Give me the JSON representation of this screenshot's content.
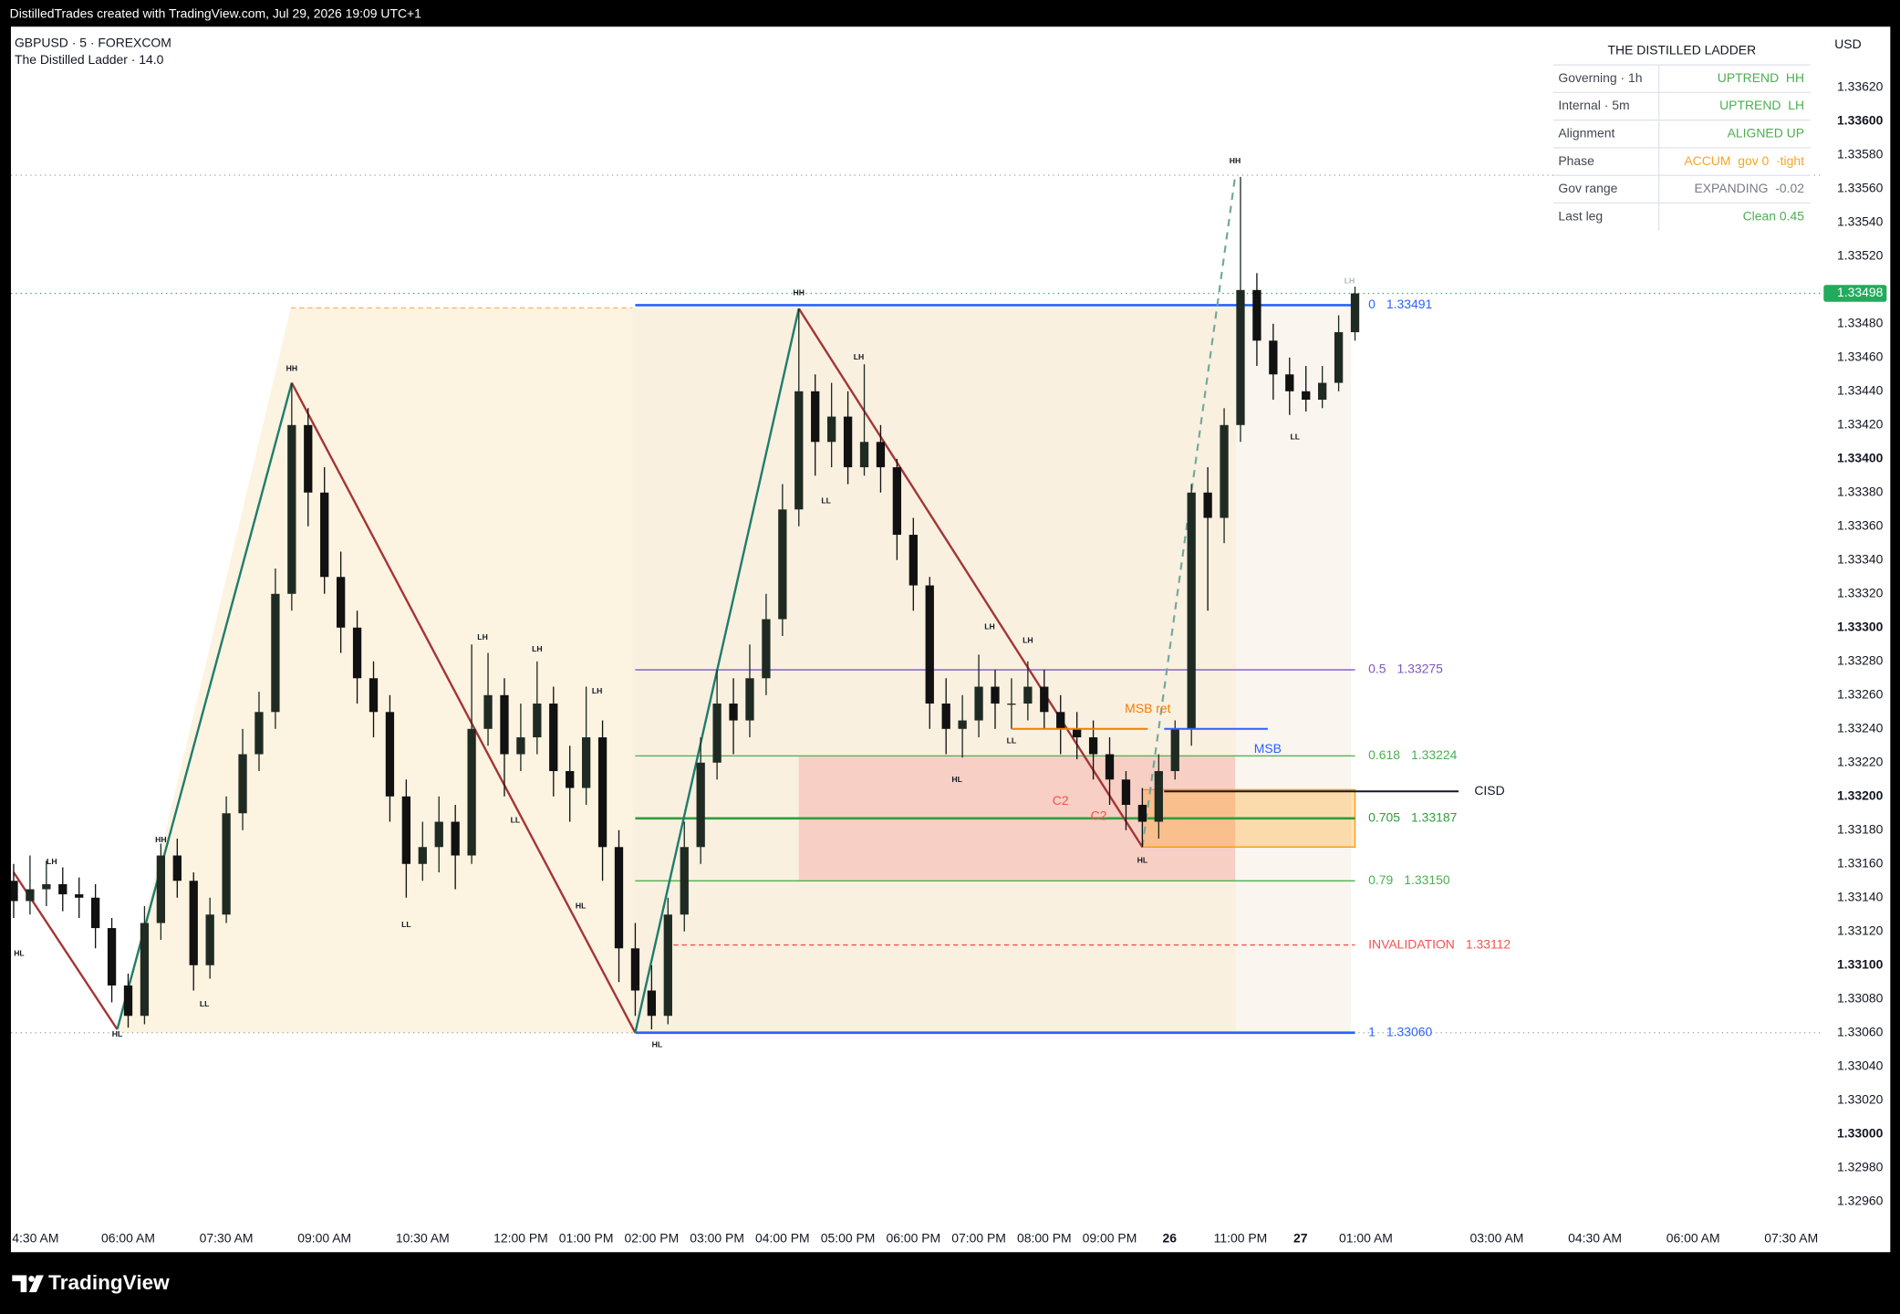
{
  "header": {
    "attribution": "DistilledTrades created with TradingView.com, Jul 29, 2026 19:09 UTC+1"
  },
  "footer": {
    "brand": "TradingView"
  },
  "table": {
    "title": "THE DISTILLED LADDER",
    "rows": [
      [
        "Governing · 1h",
        "UPTREND  HH"
      ],
      [
        "Internal · 5m",
        "UPTREND  LH"
      ],
      [
        "Alignment",
        "ALIGNED UP"
      ],
      [
        "Phase",
        "ACCUM  gov 0  ·tight"
      ],
      [
        "Gov range",
        "EXPANDING  -0.02"
      ],
      [
        "Last leg",
        "Clean 0.45"
      ]
    ],
    "value_colors": [
      "#4caf50",
      "#4caf50",
      "#4caf50",
      "#f5a623",
      "#787b86",
      "#4caf50"
    ]
  },
  "chart_data": {
    "type": "candlestick",
    "title": "GBPUSD · 5 · FOREXCOM",
    "subtitle": "The Distilled Ladder · 14.0",
    "currency": "USD",
    "up_color": "#1f2b22",
    "down_color": "#111111",
    "x": [
      -21,
      -18,
      -15,
      -12,
      -9,
      -6,
      -3,
      0,
      3,
      6,
      9,
      12,
      15,
      18,
      21,
      24,
      27,
      30,
      33,
      36,
      39,
      42,
      45,
      48,
      51,
      54,
      57,
      60,
      63,
      66,
      69,
      72,
      75,
      78,
      81,
      84,
      87,
      90,
      93,
      96,
      99,
      102,
      105,
      108,
      111,
      114,
      117,
      120,
      123,
      126,
      129,
      132,
      135,
      138,
      141,
      144,
      147,
      150,
      153,
      156,
      159,
      162,
      165,
      168,
      171,
      174,
      177,
      180,
      183,
      186,
      189,
      192,
      195,
      198,
      201,
      204,
      207,
      210,
      213,
      216,
      219,
      222,
      225
    ],
    "open": [
      1.3315,
      1.33138,
      1.33145,
      1.33148,
      1.33142,
      1.3314,
      1.33122,
      1.33088,
      1.3307,
      1.33125,
      1.33165,
      1.3315,
      1.331,
      1.3313,
      1.3319,
      1.33225,
      1.3325,
      1.3332,
      1.3342,
      1.3338,
      1.3333,
      1.333,
      1.3327,
      1.3325,
      1.332,
      1.3316,
      1.3317,
      1.33185,
      1.33165,
      1.3324,
      1.3326,
      1.33225,
      1.33235,
      1.33255,
      1.33215,
      1.33205,
      1.33235,
      1.3317,
      1.3311,
      1.33085,
      1.3307,
      1.3313,
      1.3317,
      1.3322,
      1.33255,
      1.33245,
      1.3327,
      1.33305,
      1.3337,
      1.3344,
      1.3341,
      1.33425,
      1.33395,
      1.3341,
      1.33395,
      1.33355,
      1.33325,
      1.33255,
      1.3324,
      1.33245,
      1.33265,
      1.33255,
      1.33255,
      1.33265,
      1.3325,
      1.3324,
      1.33235,
      1.33225,
      1.3321,
      1.33195,
      1.33185,
      1.33215,
      1.3324,
      1.3338,
      1.33365,
      1.3342,
      1.335,
      1.3347,
      1.3345,
      1.3344,
      1.33435,
      1.33445,
      1.33475
    ],
    "high": [
      1.3316,
      1.33165,
      1.33162,
      1.33158,
      1.33152,
      1.33148,
      1.33128,
      1.33095,
      1.33135,
      1.33172,
      1.33175,
      1.33155,
      1.3314,
      1.332,
      1.3324,
      1.33262,
      1.33335,
      1.33445,
      1.3343,
      1.33395,
      1.33345,
      1.3331,
      1.3328,
      1.3326,
      1.3321,
      1.33185,
      1.332,
      1.33195,
      1.3329,
      1.33285,
      1.3327,
      1.33255,
      1.3328,
      1.33265,
      1.3323,
      1.33265,
      1.33245,
      1.3318,
      1.33125,
      1.331,
      1.3314,
      1.33185,
      1.33235,
      1.33275,
      1.3327,
      1.3329,
      1.3332,
      1.33385,
      1.33489,
      1.3345,
      1.33445,
      1.3344,
      1.33456,
      1.3342,
      1.334,
      1.33365,
      1.3333,
      1.3327,
      1.3326,
      1.33284,
      1.33275,
      1.3327,
      1.3328,
      1.33275,
      1.3326,
      1.3325,
      1.33245,
      1.33235,
      1.33215,
      1.33205,
      1.33225,
      1.33245,
      1.33385,
      1.33395,
      1.3343,
      1.33567,
      1.3351,
      1.3348,
      1.3346,
      1.33455,
      1.33455,
      1.33485,
      1.33502
    ],
    "low": [
      1.33128,
      1.3313,
      1.33135,
      1.33132,
      1.33128,
      1.3311,
      1.33078,
      1.33063,
      1.33065,
      1.33115,
      1.3314,
      1.33085,
      1.33092,
      1.33125,
      1.3318,
      1.33215,
      1.3324,
      1.3331,
      1.3336,
      1.3332,
      1.33285,
      1.33255,
      1.33235,
      1.33185,
      1.3314,
      1.3315,
      1.33155,
      1.33145,
      1.3316,
      1.3323,
      1.332,
      1.33215,
      1.33225,
      1.332,
      1.33185,
      1.33195,
      1.3315,
      1.3309,
      1.3307,
      1.33062,
      1.33065,
      1.3312,
      1.3316,
      1.3321,
      1.33225,
      1.33235,
      1.3326,
      1.33295,
      1.3336,
      1.3339,
      1.33395,
      1.33385,
      1.3339,
      1.3338,
      1.3334,
      1.3331,
      1.3324,
      1.33225,
      1.33223,
      1.33235,
      1.3324,
      1.3324,
      1.33245,
      1.3324,
      1.33225,
      1.33222,
      1.3321,
      1.33195,
      1.3318,
      1.3317,
      1.33175,
      1.3321,
      1.3323,
      1.3331,
      1.3335,
      1.3341,
      1.33455,
      1.33435,
      1.33426,
      1.33428,
      1.3343,
      1.3344,
      1.3347
    ],
    "close": [
      1.33138,
      1.33145,
      1.33148,
      1.33142,
      1.3314,
      1.33122,
      1.33088,
      1.3307,
      1.33125,
      1.33165,
      1.3315,
      1.331,
      1.3313,
      1.3319,
      1.33225,
      1.3325,
      1.3332,
      1.3342,
      1.3338,
      1.3333,
      1.333,
      1.3327,
      1.3325,
      1.332,
      1.3316,
      1.3317,
      1.33185,
      1.33165,
      1.3324,
      1.3326,
      1.33225,
      1.33235,
      1.33255,
      1.33215,
      1.33205,
      1.33235,
      1.3317,
      1.3311,
      1.33085,
      1.3307,
      1.3313,
      1.3317,
      1.3322,
      1.33255,
      1.33245,
      1.3327,
      1.33305,
      1.3337,
      1.3344,
      1.3341,
      1.33425,
      1.33395,
      1.3341,
      1.33395,
      1.33355,
      1.33325,
      1.33255,
      1.3324,
      1.33245,
      1.33265,
      1.33255,
      1.33255,
      1.33265,
      1.3325,
      1.3324,
      1.33235,
      1.33225,
      1.3321,
      1.33195,
      1.33185,
      1.33215,
      1.3324,
      1.3338,
      1.33365,
      1.3342,
      1.335,
      1.3347,
      1.3345,
      1.3344,
      1.33435,
      1.33445,
      1.33475,
      1.33498
    ],
    "xlim": [
      -21.5,
      310.5
    ],
    "xticks": [
      {
        "value": -17,
        "label": "4:30 AM"
      },
      {
        "value": 0,
        "label": "06:00 AM"
      },
      {
        "value": 18,
        "label": "07:30 AM"
      },
      {
        "value": 36,
        "label": "09:00 AM"
      },
      {
        "value": 54,
        "label": "10:30 AM"
      },
      {
        "value": 72,
        "label": "12:00 PM"
      },
      {
        "value": 84,
        "label": "01:00 PM"
      },
      {
        "value": 96,
        "label": "02:00 PM"
      },
      {
        "value": 108,
        "label": "03:00 PM"
      },
      {
        "value": 120,
        "label": "04:00 PM"
      },
      {
        "value": 132,
        "label": "05:00 PM"
      },
      {
        "value": 144,
        "label": "06:00 PM"
      },
      {
        "value": 156,
        "label": "07:00 PM"
      },
      {
        "value": 168,
        "label": "08:00 PM"
      },
      {
        "value": 180,
        "label": "09:00 PM"
      },
      {
        "value": 191,
        "label": "26",
        "bold": true
      },
      {
        "value": 204,
        "label": "11:00 PM"
      },
      {
        "value": 215,
        "label": "27",
        "bold": true
      },
      {
        "value": 227,
        "label": "01:00 AM"
      },
      {
        "value": 251,
        "label": "03:00 AM"
      },
      {
        "value": 269,
        "label": "04:30 AM"
      },
      {
        "value": 287,
        "label": "06:00 AM"
      },
      {
        "value": 305,
        "label": "07:30 AM"
      }
    ],
    "ylim": [
      1.3293,
      1.33656
    ],
    "yticks": [
      {
        "value": 1.3296,
        "label": "1.32960"
      },
      {
        "value": 1.3298,
        "label": "1.32980"
      },
      {
        "value": 1.33,
        "label": "1.33000"
      },
      {
        "value": 1.3302,
        "label": "1.33020"
      },
      {
        "value": 1.3304,
        "label": "1.33040"
      },
      {
        "value": 1.3306,
        "label": "1.33060"
      },
      {
        "value": 1.3308,
        "label": "1.33080"
      },
      {
        "value": 1.331,
        "label": "1.33100"
      },
      {
        "value": 1.3312,
        "label": "1.33120"
      },
      {
        "value": 1.3314,
        "label": "1.33140"
      },
      {
        "value": 1.3316,
        "label": "1.33160"
      },
      {
        "value": 1.3318,
        "label": "1.33180"
      },
      {
        "value": 1.332,
        "label": "1.33200"
      },
      {
        "value": 1.3322,
        "label": "1.33220"
      },
      {
        "value": 1.3324,
        "label": "1.33240"
      },
      {
        "value": 1.3326,
        "label": "1.33260"
      },
      {
        "value": 1.3328,
        "label": "1.33280"
      },
      {
        "value": 1.333,
        "label": "1.33300"
      },
      {
        "value": 1.3332,
        "label": "1.33320"
      },
      {
        "value": 1.3334,
        "label": "1.33340"
      },
      {
        "value": 1.3336,
        "label": "1.33360"
      },
      {
        "value": 1.3338,
        "label": "1.33380"
      },
      {
        "value": 1.334,
        "label": "1.33400"
      },
      {
        "value": 1.3342,
        "label": "1.33420"
      },
      {
        "value": 1.3344,
        "label": "1.33440"
      },
      {
        "value": 1.3346,
        "label": "1.33460"
      },
      {
        "value": 1.3348,
        "label": "1.33480"
      },
      {
        "value": 1.3352,
        "label": "1.33520"
      },
      {
        "value": 1.3354,
        "label": "1.33540"
      },
      {
        "value": 1.3356,
        "label": "1.33560"
      },
      {
        "value": 1.3358,
        "label": "1.33580"
      },
      {
        "value": 1.336,
        "label": "1.33600"
      },
      {
        "value": 1.3362,
        "label": "1.33620"
      }
    ],
    "last_price": {
      "value": 1.33498,
      "label": "1.33498",
      "color": "#22ab5c"
    },
    "ref_lines": [
      {
        "value": 1.33568,
        "color": "#a0a3ab"
      },
      {
        "value": 1.3306,
        "color": "#a0a3ab"
      }
    ],
    "zones": [
      {
        "x": [
          123,
          203
        ],
        "y": [
          1.3315,
          1.33224
        ],
        "color": "rgba(242,140,140,0.33)",
        "stroke": "none"
      },
      {
        "x": [
          186,
          225
        ],
        "y": [
          1.3317,
          1.33204
        ],
        "color": "rgba(255,152,0,0.28)",
        "stroke": "#ff9800"
      }
    ],
    "zigzag": {
      "x": [
        -21,
        -2,
        30,
        93,
        123,
        186
      ],
      "y": [
        1.33155,
        1.33062,
        1.33445,
        1.3306,
        1.33489,
        1.3317
      ],
      "up_color": "#1e7d6b",
      "down_color": "#a33535",
      "projection": {
        "x": [
          186,
          203
        ],
        "y": [
          1.3317,
          1.33567
        ]
      }
    },
    "level_span": [
      93,
      225
    ],
    "levels": [
      {
        "ratio": 0,
        "value": 1.33491,
        "label": "1.33491",
        "color": "#2962ff",
        "width": 2
      },
      {
        "ratio": 0.5,
        "value": 1.33275,
        "label": "1.33275",
        "color": "#7e57c2",
        "width": 1
      },
      {
        "ratio": 0.618,
        "value": 1.33224,
        "label": "1.33224",
        "color": "#4caf50",
        "width": 1
      },
      {
        "ratio": 0.705,
        "value": 1.33187,
        "label": "1.33187",
        "color": "#2e9e3e",
        "width": 2
      },
      {
        "ratio": 0.79,
        "value": 1.3315,
        "label": "1.33150",
        "color": "#4caf50",
        "width": 1
      },
      {
        "ratio": 1,
        "value": 1.3306,
        "label": "1.33060",
        "color": "#2962ff",
        "width": 2
      }
    ],
    "invalidation": {
      "text": "INVALIDATION",
      "value": 1.33112,
      "label": "1.33112",
      "x": [
        100,
        225
      ],
      "color": "#ef5350"
    },
    "markers": [
      {
        "text": "CISD",
        "value": 1.33203,
        "x": [
          190,
          244
        ],
        "color": "#131722",
        "text_side": "right"
      },
      {
        "text": "MSB",
        "value": 1.3324,
        "x": [
          190,
          209
        ],
        "color": "#2962ff",
        "text_side": "below"
      },
      {
        "text": "MSB ret",
        "value": 1.3324,
        "x": [
          162,
          187
        ],
        "color": "#f57c00",
        "text_side": "above"
      }
    ],
    "labels": [
      {
        "text": "C2",
        "x": 171,
        "value": 1.33197,
        "color": "#ef5350"
      },
      {
        "text": "C2",
        "x": 178,
        "value": 1.33188,
        "color": "#ef5350"
      }
    ],
    "swing_color": "#131722",
    "swings": [
      {
        "label": "HL",
        "x": -20,
        "y": 1.33114
      },
      {
        "label": "LH",
        "x": -14,
        "y": 1.33154
      },
      {
        "label": "HL",
        "x": -2,
        "y": 1.33066
      },
      {
        "label": "HH",
        "x": 6,
        "y": 1.33167
      },
      {
        "label": "LL",
        "x": 14,
        "y": 1.33084
      },
      {
        "label": "HH",
        "x": 30,
        "y": 1.33446
      },
      {
        "label": "LL",
        "x": 51,
        "y": 1.33131
      },
      {
        "label": "LH",
        "x": 65,
        "y": 1.33287
      },
      {
        "label": "LL",
        "x": 71,
        "y": 1.33193
      },
      {
        "label": "LH",
        "x": 75,
        "y": 1.3328
      },
      {
        "label": "HL",
        "x": 83,
        "y": 1.33142
      },
      {
        "label": "LH",
        "x": 86,
        "y": 1.33255
      },
      {
        "label": "HL",
        "x": 97,
        "y": 1.3306
      },
      {
        "label": "HH",
        "x": 123,
        "y": 1.33491
      },
      {
        "label": "LL",
        "x": 128,
        "y": 1.33382
      },
      {
        "label": "LH",
        "x": 134,
        "y": 1.33453
      },
      {
        "label": "HL",
        "x": 152,
        "y": 1.33217
      },
      {
        "label": "LH",
        "x": 158,
        "y": 1.33293
      },
      {
        "label": "LL",
        "x": 162,
        "y": 1.3324
      },
      {
        "label": "LH",
        "x": 165,
        "y": 1.33285
      },
      {
        "label": "HL",
        "x": 186,
        "y": 1.33169
      },
      {
        "label": "HH",
        "x": 203,
        "y": 1.33569
      },
      {
        "label": "LL",
        "x": 214,
        "y": 1.3342
      },
      {
        "label": "LH",
        "x": 224,
        "y": 1.33498,
        "color": "#b2b5be"
      }
    ]
  }
}
